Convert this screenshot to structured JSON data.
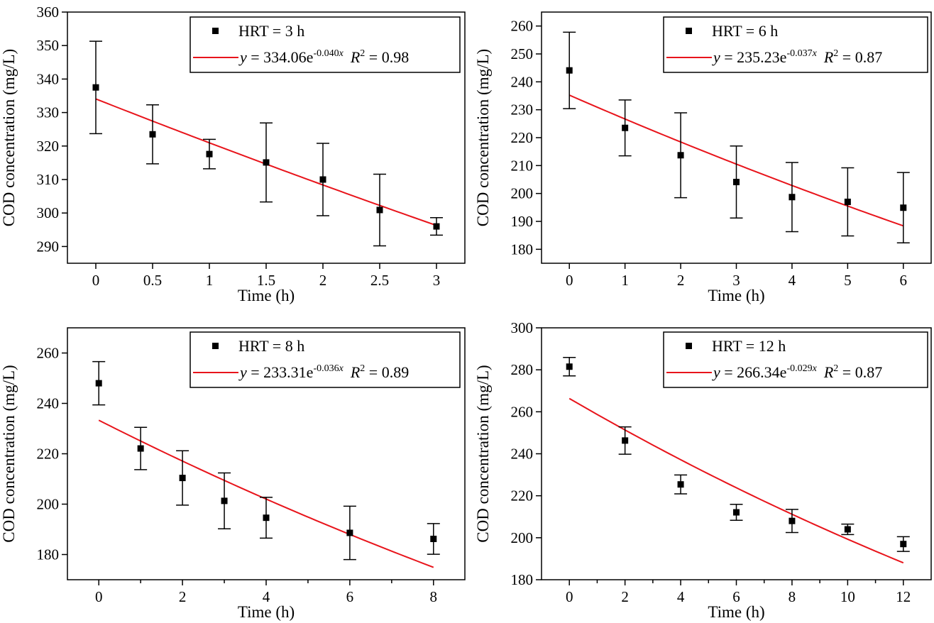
{
  "colors": {
    "fit_line": "#e8141b",
    "data_points": "#000000",
    "axes": "#000000"
  },
  "chart_data": [
    {
      "type": "scatter",
      "xlabel": "Time (h)",
      "ylabel": "COD concentration (mg/L)",
      "xlim": [
        -0.25,
        3.25
      ],
      "ylim": [
        285,
        360
      ],
      "xticks": [
        0,
        0.5,
        1,
        1.5,
        2,
        2.5,
        3
      ],
      "xtick_labels": [
        "0",
        "0.5",
        "1",
        "1.5",
        "2",
        "2.5",
        "3"
      ],
      "yticks": [
        290,
        300,
        310,
        320,
        330,
        340,
        350,
        360
      ],
      "ytick_labels": [
        "290",
        "300",
        "310",
        "320",
        "330",
        "340",
        "350",
        "360"
      ],
      "series": [
        {
          "name": "HRT = 3 h",
          "x": [
            0,
            0.5,
            1,
            1.5,
            2,
            2.5,
            3
          ],
          "y": [
            337.5,
            323.5,
            317.6,
            315.1,
            310.0,
            300.9,
            296.0
          ],
          "error": [
            13.8,
            8.8,
            4.4,
            11.8,
            10.8,
            10.7,
            2.6
          ]
        }
      ],
      "fit": {
        "a": 334.06,
        "b": -0.04,
        "x_range": [
          0,
          3
        ],
        "label": {
          "y_symbol": "y",
          "eq_text": " = 334.06e",
          "exponent": "-0.040",
          "exponent_x": "x",
          "r_symbol": "R",
          "r_sup": "2",
          "r_value": " = 0.98"
        }
      },
      "legend": {
        "position": "top-right"
      }
    },
    {
      "type": "scatter",
      "xlabel": "Time (h)",
      "ylabel": "COD concentration (mg/L)",
      "xlim": [
        -0.5,
        6.5
      ],
      "ylim": [
        175,
        265
      ],
      "xticks": [
        0,
        1,
        2,
        3,
        4,
        5,
        6
      ],
      "xtick_labels": [
        "0",
        "1",
        "2",
        "3",
        "4",
        "5",
        "6"
      ],
      "yticks": [
        180,
        190,
        200,
        210,
        220,
        230,
        240,
        250,
        260
      ],
      "ytick_labels": [
        "180",
        "190",
        "200",
        "210",
        "220",
        "230",
        "240",
        "250",
        "260"
      ],
      "series": [
        {
          "name": "HRT = 6 h",
          "x": [
            0,
            1,
            2,
            3,
            4,
            5,
            6
          ],
          "y": [
            244.1,
            223.5,
            213.7,
            204.1,
            198.7,
            197.0,
            194.9
          ],
          "error": [
            13.7,
            10.0,
            15.2,
            12.9,
            12.4,
            12.2,
            12.6
          ]
        }
      ],
      "fit": {
        "a": 235.23,
        "b": -0.037,
        "x_range": [
          0,
          6
        ],
        "label": {
          "y_symbol": "y",
          "eq_text": " = 235.23e",
          "exponent": "-0.037",
          "exponent_x": "x",
          "r_symbol": "R",
          "r_sup": "2",
          "r_value": " = 0.87"
        }
      },
      "legend": {
        "position": "top-right"
      }
    },
    {
      "type": "scatter",
      "xlabel": "Time (h)",
      "ylabel": "COD concentration (mg/L)",
      "xlim": [
        -0.75,
        8.75
      ],
      "ylim": [
        170,
        270
      ],
      "xticks": [
        0,
        2,
        4,
        6,
        8
      ],
      "xtick_labels": [
        "0",
        "2",
        "4",
        "6",
        "8"
      ],
      "minor_xticks": [
        1,
        3,
        5,
        7
      ],
      "yticks": [
        180,
        200,
        220,
        240,
        260
      ],
      "ytick_labels": [
        "180",
        "200",
        "220",
        "240",
        "260"
      ],
      "series": [
        {
          "name": "HRT = 8 h",
          "x": [
            0,
            1,
            2,
            3,
            4,
            6,
            8
          ],
          "y": [
            248.0,
            222.1,
            210.4,
            201.3,
            194.6,
            188.6,
            186.2
          ],
          "error": [
            8.6,
            8.4,
            10.8,
            11.1,
            8.1,
            10.6,
            6.1
          ]
        }
      ],
      "fit": {
        "a": 233.31,
        "b": -0.036,
        "x_range": [
          0,
          8
        ],
        "label": {
          "y_symbol": "y",
          "eq_text": " = 233.31e",
          "exponent": "-0.036",
          "exponent_x": "x",
          "r_symbol": "R",
          "r_sup": "2",
          "r_value": " = 0.89"
        }
      },
      "legend": {
        "position": "top-right"
      }
    },
    {
      "type": "scatter",
      "xlabel": "Time (h)",
      "ylabel": "COD concentration (mg/L)",
      "xlim": [
        -1,
        13
      ],
      "ylim": [
        180,
        300
      ],
      "xticks": [
        0,
        2,
        4,
        6,
        8,
        10,
        12
      ],
      "xtick_labels": [
        "0",
        "2",
        "4",
        "6",
        "8",
        "10",
        "12"
      ],
      "minor_xticks": [
        1,
        3,
        5,
        7,
        9,
        11
      ],
      "yticks": [
        180,
        200,
        220,
        240,
        260,
        280,
        300
      ],
      "ytick_labels": [
        "180",
        "200",
        "220",
        "240",
        "260",
        "280",
        "300"
      ],
      "series": [
        {
          "name": "HRT = 12 h",
          "x": [
            0,
            2,
            4,
            6,
            8,
            10,
            12
          ],
          "y": [
            281.5,
            246.3,
            225.4,
            212.1,
            208.0,
            204.0,
            197.0
          ],
          "error": [
            4.4,
            6.5,
            4.5,
            3.8,
            5.5,
            2.5,
            3.5
          ]
        }
      ],
      "fit": {
        "a": 266.34,
        "b": -0.029,
        "x_range": [
          0,
          12
        ],
        "label": {
          "y_symbol": "y",
          "eq_text": " = 266.34e",
          "exponent": "-0.029",
          "exponent_x": "x",
          "r_symbol": "R",
          "r_sup": "2",
          "r_value": " = 0.87"
        }
      },
      "legend": {
        "position": "top-right"
      }
    }
  ]
}
